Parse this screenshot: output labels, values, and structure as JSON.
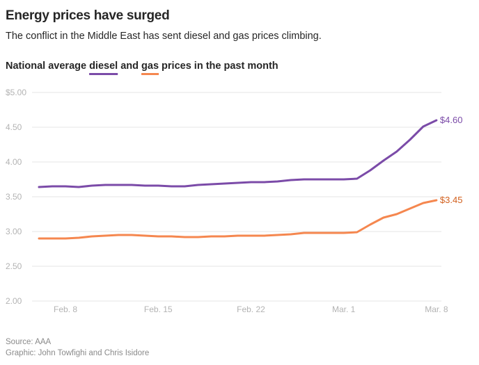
{
  "title": "Energy prices have surged",
  "subtitle": "The conflict in the Middle East has sent diesel and gas prices climbing.",
  "chart_title": {
    "prefix": "National average ",
    "diesel": "diesel",
    "mid": " and ",
    "gas": "gas",
    "suffix": " prices in the past month"
  },
  "source": "Source: AAA",
  "credit": "Graphic: John Towfighi and Chris Isidore",
  "chart_data": {
    "type": "line",
    "ylim": [
      2.0,
      5.0
    ],
    "y_ticks": [
      2.0,
      2.5,
      3.0,
      3.5,
      4.0,
      4.5,
      5.0
    ],
    "y_tick_labels": [
      "2.00",
      "2.50",
      "3.00",
      "3.50",
      "4.00",
      "4.50",
      "$5.00"
    ],
    "x_tick_labels": [
      "Feb. 8",
      "Feb. 15",
      "Feb. 22",
      "Mar. 1",
      "Mar. 8"
    ],
    "x_tick_dates": [
      "Feb 8",
      "Feb 15",
      "Feb 22",
      "Mar 1",
      "Mar 8"
    ],
    "grid": true,
    "x": [
      "Feb 6",
      "Feb 7",
      "Feb 8",
      "Feb 9",
      "Feb 10",
      "Feb 11",
      "Feb 12",
      "Feb 13",
      "Feb 14",
      "Feb 15",
      "Feb 16",
      "Feb 17",
      "Feb 18",
      "Feb 19",
      "Feb 20",
      "Feb 21",
      "Feb 22",
      "Feb 23",
      "Feb 24",
      "Feb 25",
      "Feb 26",
      "Feb 27",
      "Feb 28",
      "Mar 1",
      "Mar 2",
      "Mar 3",
      "Mar 4",
      "Mar 5",
      "Mar 6",
      "Mar 7",
      "Mar 8"
    ],
    "series": [
      {
        "name": "diesel",
        "color": "#7b4ba8",
        "end_label": "$4.60",
        "values": [
          3.64,
          3.65,
          3.65,
          3.64,
          3.66,
          3.67,
          3.67,
          3.67,
          3.66,
          3.66,
          3.65,
          3.65,
          3.67,
          3.68,
          3.69,
          3.7,
          3.71,
          3.71,
          3.72,
          3.74,
          3.75,
          3.75,
          3.75,
          3.75,
          3.76,
          3.88,
          4.02,
          4.15,
          4.32,
          4.51,
          4.6
        ]
      },
      {
        "name": "gas",
        "color": "#f5874f",
        "label_color": "#d2601e",
        "end_label": "$3.45",
        "values": [
          2.9,
          2.9,
          2.9,
          2.91,
          2.93,
          2.94,
          2.95,
          2.95,
          2.94,
          2.93,
          2.93,
          2.92,
          2.92,
          2.93,
          2.93,
          2.94,
          2.94,
          2.94,
          2.95,
          2.96,
          2.98,
          2.98,
          2.98,
          2.98,
          2.99,
          3.1,
          3.2,
          3.25,
          3.33,
          3.41,
          3.45
        ]
      }
    ]
  }
}
